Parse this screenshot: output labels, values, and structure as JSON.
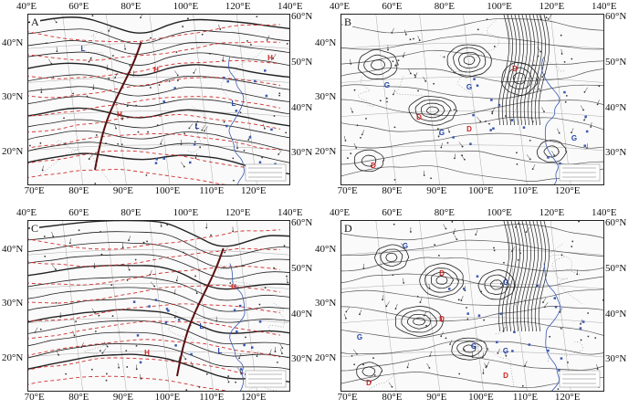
{
  "panels": [
    {
      "letter": "A",
      "top_axis": [
        "40°E",
        "60°E",
        "80°E",
        "100°E",
        "120°E",
        "140°E"
      ],
      "bottom_axis": [
        "70°E",
        "80°E",
        "90°E",
        "100°E",
        "110°E",
        "120°E"
      ],
      "left_axis": [
        "40°N",
        "30°N",
        "20°N"
      ],
      "right_axis": [
        "60°N",
        "50°N",
        "40°N",
        "30°N"
      ],
      "markers": [
        {
          "letter": "H",
          "color": "#cc2222"
        },
        {
          "letter": "L",
          "color": "#2244aa"
        }
      ]
    },
    {
      "letter": "B",
      "top_axis": [
        "40°E",
        "60°E",
        "80°E",
        "100°E",
        "120°E",
        "140°E"
      ],
      "bottom_axis": [
        "70°E",
        "80°E",
        "90°E",
        "100°E",
        "110°E",
        "120°E"
      ],
      "left_axis": [
        "40°N",
        "30°N",
        "20°N"
      ],
      "right_axis": [
        "60°N",
        "50°N",
        "40°N",
        "30°N"
      ],
      "markers": [
        {
          "letter": "G",
          "color": "#2244aa"
        },
        {
          "letter": "D",
          "color": "#cc2222"
        }
      ]
    },
    {
      "letter": "C",
      "top_axis": [
        "40°E",
        "60°E",
        "80°E",
        "100°E",
        "120°E",
        "140°E"
      ],
      "bottom_axis": [
        "70°E",
        "80°E",
        "90°E",
        "100°E",
        "110°E",
        "120°E"
      ],
      "left_axis": [
        "40°N",
        "30°N",
        "20°N"
      ],
      "right_axis": [
        "60°N",
        "50°N",
        "40°N",
        "30°N"
      ],
      "markers": [
        {
          "letter": "H",
          "color": "#cc2222"
        },
        {
          "letter": "L",
          "color": "#2244aa"
        }
      ]
    },
    {
      "letter": "D",
      "top_axis": [
        "40°E",
        "60°E",
        "80°E",
        "100°E",
        "120°E",
        "140°E"
      ],
      "bottom_axis": [
        "70°E",
        "80°E",
        "90°E",
        "100°E",
        "110°E",
        "120°E"
      ],
      "left_axis": [
        "40°N",
        "30°N",
        "20°N"
      ],
      "right_axis": [
        "60°N",
        "50°N",
        "40°N",
        "30°N"
      ],
      "markers": [
        {
          "letter": "G",
          "color": "#2244aa"
        },
        {
          "letter": "D",
          "color": "#cc2222"
        }
      ]
    }
  ],
  "colors": {
    "contour_black": "#222222",
    "contour_red": "#d03030",
    "coast_blue": "#3a58b0",
    "marker_red": "#cc2222",
    "marker_blue": "#2244aa"
  }
}
